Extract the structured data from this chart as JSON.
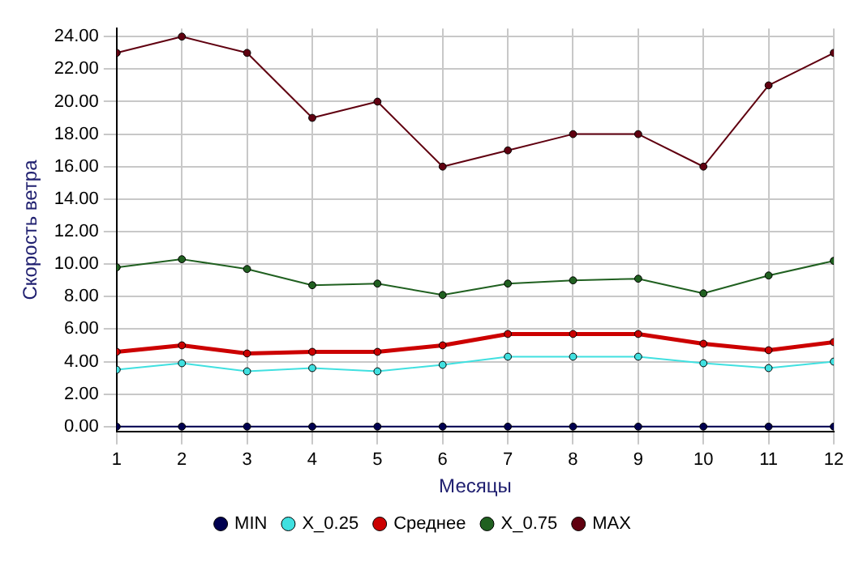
{
  "chart_data": {
    "type": "line",
    "xlabel": "Месяцы",
    "ylabel": "Скорость ветра",
    "x": [
      1,
      2,
      3,
      4,
      5,
      6,
      7,
      8,
      9,
      10,
      11,
      12
    ],
    "xlim": [
      1,
      12
    ],
    "xticks": [
      1,
      2,
      3,
      4,
      5,
      6,
      7,
      8,
      9,
      10,
      11,
      12
    ],
    "ylim": [
      -0.3,
      24.5
    ],
    "yticks": [
      {
        "value": 0,
        "label": "0.00"
      },
      {
        "value": 2,
        "label": "2.00"
      },
      {
        "value": 4,
        "label": "4.00"
      },
      {
        "value": 6,
        "label": "6.00"
      },
      {
        "value": 8,
        "label": "8.00"
      },
      {
        "value": 10,
        "label": "10.00"
      },
      {
        "value": 12,
        "label": "12.00"
      },
      {
        "value": 14,
        "label": "14.00"
      },
      {
        "value": 16,
        "label": "16.00"
      },
      {
        "value": 18,
        "label": "18.00"
      },
      {
        "value": 20,
        "label": "20.00"
      },
      {
        "value": 22,
        "label": "22.00"
      },
      {
        "value": 24,
        "label": "24.00"
      }
    ],
    "grid": true,
    "legend": "bottom",
    "marker": "circle",
    "series": [
      {
        "name": "MIN",
        "color": "#000050",
        "values": [
          0,
          0,
          0,
          0,
          0,
          0,
          0,
          0,
          0,
          0,
          0,
          0
        ]
      },
      {
        "name": "X_0.25",
        "color": "#40e0e0",
        "values": [
          3.5,
          3.9,
          3.4,
          3.6,
          3.4,
          3.8,
          4.3,
          4.3,
          4.3,
          3.9,
          3.6,
          4.0
        ]
      },
      {
        "name": "Среднее",
        "color": "#cc0000",
        "values": [
          4.6,
          5.0,
          4.5,
          4.6,
          4.6,
          5.0,
          5.7,
          5.7,
          5.7,
          5.1,
          4.7,
          5.2
        ]
      },
      {
        "name": "X_0.75",
        "color": "#206020",
        "values": [
          9.8,
          10.3,
          9.7,
          8.7,
          8.8,
          8.1,
          8.8,
          9.0,
          9.1,
          8.2,
          9.3,
          10.2
        ]
      },
      {
        "name": "MAX",
        "color": "#600010",
        "values": [
          23,
          24,
          23,
          19,
          20,
          16,
          17,
          18,
          18,
          16,
          21,
          23
        ]
      }
    ]
  }
}
